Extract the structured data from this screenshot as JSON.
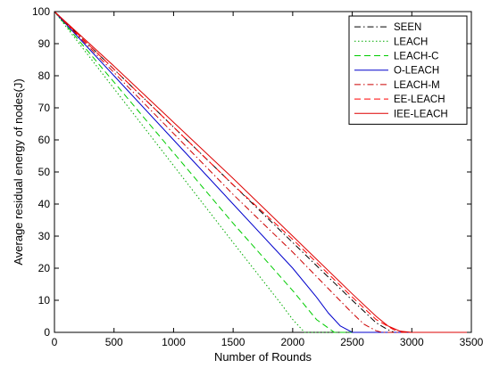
{
  "chart_data": {
    "type": "line",
    "title": "",
    "xlabel": "Number of Rounds",
    "ylabel": "Average residual energy of nodes(J)",
    "xlim": [
      0,
      3500
    ],
    "ylim": [
      0,
      100
    ],
    "xticks": [
      0,
      500,
      1000,
      1500,
      2000,
      2500,
      3000,
      3500
    ],
    "yticks": [
      0,
      10,
      20,
      30,
      40,
      50,
      60,
      70,
      80,
      90,
      100
    ],
    "grid": false,
    "legend_position": "top-right",
    "series": [
      {
        "name": "SEEN",
        "color": "#000000",
        "dash": "dash-dot",
        "x": [
          0,
          500,
          1000,
          1500,
          2000,
          2500,
          2700,
          2800,
          2850,
          3000,
          3500
        ],
        "y": [
          100,
          82,
          64,
          46,
          28,
          10,
          3,
          0.8,
          0,
          0,
          0
        ]
      },
      {
        "name": "LEACH",
        "color": "#00aa00",
        "dash": "dotted",
        "x": [
          0,
          500,
          1000,
          1500,
          1900,
          2000,
          2100,
          3500
        ],
        "y": [
          100,
          76,
          52,
          28,
          9,
          4,
          0,
          0
        ]
      },
      {
        "name": "LEACH-C",
        "color": "#00cc00",
        "dash": "dashed",
        "x": [
          0,
          500,
          1000,
          1500,
          2000,
          2200,
          2350,
          3500
        ],
        "y": [
          100,
          78,
          56,
          34,
          13,
          4,
          0,
          0
        ]
      },
      {
        "name": "O-LEACH",
        "color": "#0000cc",
        "dash": "solid",
        "x": [
          0,
          500,
          1000,
          1500,
          2000,
          2200,
          2300,
          2400,
          2500,
          3500
        ],
        "y": [
          100,
          80,
          60,
          40,
          20,
          11,
          6,
          2,
          0,
          0
        ]
      },
      {
        "name": "LEACH-M",
        "color": "#cc0000",
        "dash": "dash-dot",
        "x": [
          0,
          500,
          1000,
          1500,
          2000,
          2500,
          2600,
          2700,
          2750,
          3500
        ],
        "y": [
          100,
          81,
          62,
          43,
          25,
          6,
          2.5,
          0.5,
          0,
          0
        ]
      },
      {
        "name": "EE-LEACH",
        "color": "#ff0000",
        "dash": "dashed",
        "x": [
          0,
          500,
          1000,
          1500,
          2000,
          2500,
          2700,
          2850,
          2950,
          3500
        ],
        "y": [
          100,
          82,
          64,
          46,
          29,
          11,
          4,
          0.8,
          0,
          0
        ]
      },
      {
        "name": "IEE-LEACH",
        "color": "#dd0000",
        "dash": "solid",
        "x": [
          0,
          500,
          1000,
          1500,
          2000,
          2500,
          2700,
          2800,
          2900,
          3000,
          3500
        ],
        "y": [
          100,
          83,
          65.5,
          48,
          30,
          12,
          5,
          2,
          0.4,
          0,
          0
        ]
      }
    ]
  }
}
